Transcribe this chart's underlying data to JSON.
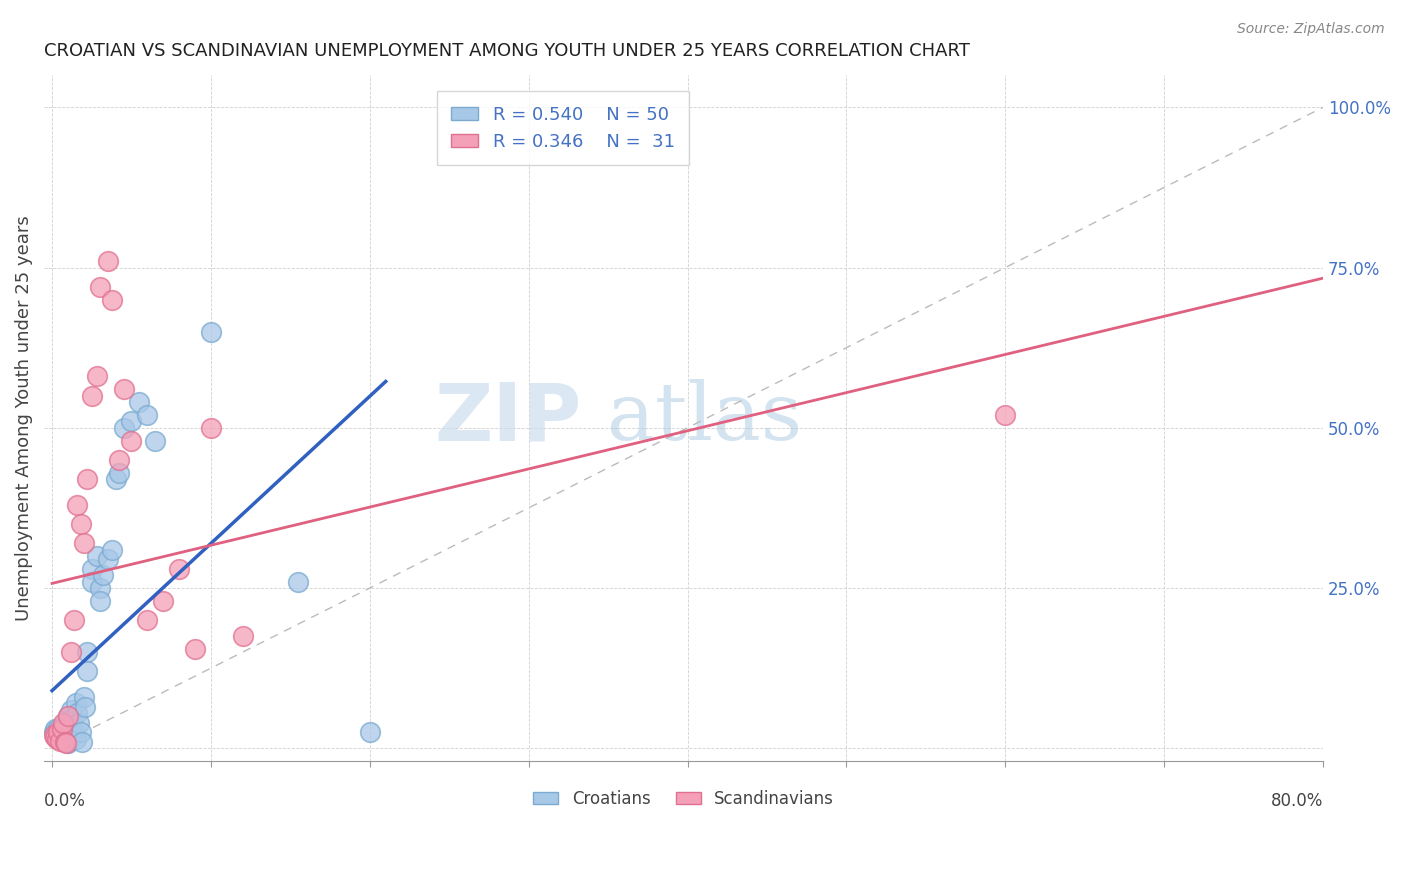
{
  "title": "CROATIAN VS SCANDINAVIAN UNEMPLOYMENT AMONG YOUTH UNDER 25 YEARS CORRELATION CHART",
  "source": "Source: ZipAtlas.com",
  "ylabel": "Unemployment Among Youth under 25 years",
  "yticks": [
    0.0,
    0.25,
    0.5,
    0.75,
    1.0
  ],
  "ytick_labels": [
    "",
    "25.0%",
    "50.0%",
    "75.0%",
    "100.0%"
  ],
  "xlim": [
    -0.005,
    0.8
  ],
  "ylim": [
    -0.02,
    1.05
  ],
  "watermark_zip": "ZIP",
  "watermark_atlas": "atlas",
  "legend_blue_label": "R = 0.540    N = 50",
  "legend_pink_label": "R = 0.346    N =  31",
  "legend_croatians": "Croatians",
  "legend_scandinavians": "Scandinavians",
  "blue_color": "#A8C8E8",
  "pink_color": "#F4A0B8",
  "blue_edge": "#7AAAD0",
  "pink_edge": "#E07090",
  "blue_line_color": "#3060C0",
  "pink_line_color": "#E06080",
  "ref_line_color": "#BBBBBB",
  "croatians_x": [
    0.001,
    0.002,
    0.003,
    0.004,
    0.005,
    0.005,
    0.006,
    0.007,
    0.007,
    0.008,
    0.008,
    0.009,
    0.009,
    0.01,
    0.01,
    0.01,
    0.011,
    0.011,
    0.012,
    0.012,
    0.013,
    0.014,
    0.015,
    0.015,
    0.016,
    0.017,
    0.018,
    0.019,
    0.02,
    0.021,
    0.022,
    0.022,
    0.025,
    0.025,
    0.028,
    0.03,
    0.03,
    0.032,
    0.035,
    0.038,
    0.04,
    0.042,
    0.045,
    0.05,
    0.055,
    0.06,
    0.065,
    0.1,
    0.155,
    0.2
  ],
  "croatians_y": [
    0.025,
    0.03,
    0.028,
    0.022,
    0.02,
    0.018,
    0.015,
    0.012,
    0.035,
    0.025,
    0.04,
    0.028,
    0.015,
    0.01,
    0.008,
    0.05,
    0.035,
    0.02,
    0.06,
    0.045,
    0.03,
    0.02,
    0.015,
    0.07,
    0.055,
    0.04,
    0.025,
    0.01,
    0.08,
    0.065,
    0.15,
    0.12,
    0.28,
    0.26,
    0.3,
    0.25,
    0.23,
    0.27,
    0.295,
    0.31,
    0.42,
    0.43,
    0.5,
    0.51,
    0.54,
    0.52,
    0.48,
    0.65,
    0.26,
    0.025
  ],
  "scandinavians_x": [
    0.001,
    0.002,
    0.003,
    0.004,
    0.005,
    0.006,
    0.007,
    0.008,
    0.009,
    0.01,
    0.012,
    0.014,
    0.016,
    0.018,
    0.02,
    0.022,
    0.025,
    0.028,
    0.03,
    0.035,
    0.038,
    0.042,
    0.045,
    0.05,
    0.06,
    0.07,
    0.08,
    0.09,
    0.1,
    0.12,
    0.6
  ],
  "scandinavians_y": [
    0.02,
    0.018,
    0.015,
    0.025,
    0.012,
    0.03,
    0.04,
    0.01,
    0.008,
    0.05,
    0.15,
    0.2,
    0.38,
    0.35,
    0.32,
    0.42,
    0.55,
    0.58,
    0.72,
    0.76,
    0.7,
    0.45,
    0.56,
    0.48,
    0.2,
    0.23,
    0.28,
    0.155,
    0.5,
    0.175,
    0.52
  ],
  "blue_line_x": [
    0.0,
    0.21
  ],
  "pink_line_x": [
    0.0,
    0.8
  ]
}
